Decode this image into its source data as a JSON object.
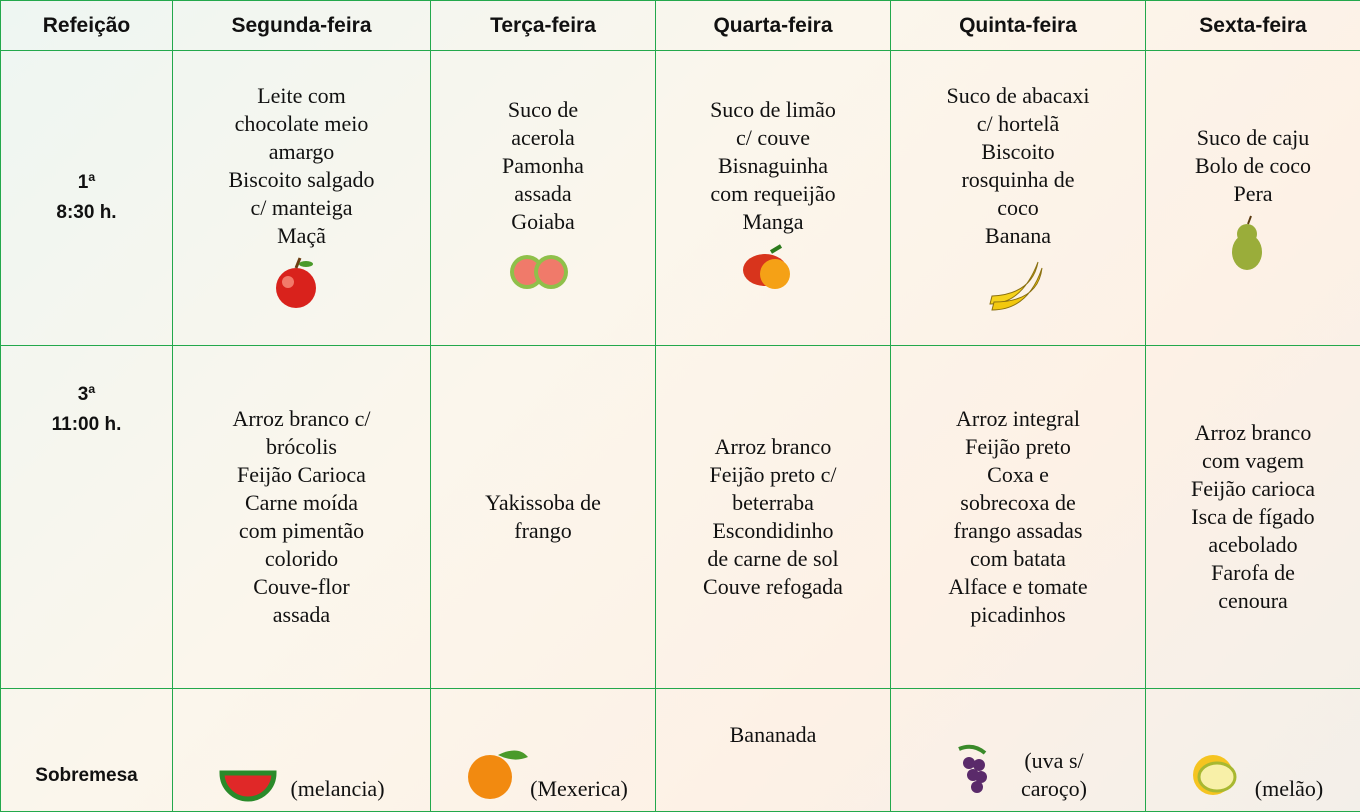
{
  "table": {
    "header": [
      "Refeição",
      "Segunda-feira",
      "Terça-feira",
      "Quarta-feira",
      "Quinta-feira",
      "Sexta-feira"
    ],
    "rows": [
      {
        "label": [
          "1ª",
          "8:30 h."
        ],
        "cells": [
          [
            "Leite com",
            "chocolate meio",
            "amargo",
            "Biscoito salgado",
            "c/ manteiga",
            "Maçã"
          ],
          [
            "Suco de",
            "acerola",
            "Pamonha",
            "assada",
            "Goiaba"
          ],
          [
            "Suco de limão",
            "c/ couve",
            "Bisnaguinha",
            "com requeijão",
            "Manga"
          ],
          [
            "Suco de abacaxi",
            "c/ hortelã",
            "Biscoito",
            "rosquinha de",
            "coco",
            "Banana"
          ],
          [
            "Suco de caju",
            "Bolo de coco",
            "Pera"
          ]
        ]
      },
      {
        "label": [
          "3ª",
          "11:00 h."
        ],
        "cells": [
          [
            "Arroz branco c/",
            "brócolis",
            "Feijão Carioca",
            "Carne moída",
            "com pimentão",
            "colorido",
            "Couve-flor",
            "assada"
          ],
          [
            "Yakissoba de",
            "frango"
          ],
          [
            "Arroz branco",
            "Feijão preto c/",
            "beterraba",
            "Escondidinho",
            "de carne de sol",
            "Couve refogada"
          ],
          [
            "Arroz integral",
            "Feijão preto",
            "Coxa e",
            "sobrecoxa de",
            "frango assadas",
            "com batata",
            "Alface e tomate",
            "picadinhos"
          ],
          [
            "Arroz branco",
            "com vagem",
            "Feijão carioca",
            "Isca de fígado",
            "acebolado",
            "Farofa de",
            "cenoura"
          ]
        ]
      },
      {
        "label": [
          "Sobremesa"
        ],
        "cells": [
          [
            "(melancia)"
          ],
          [
            "(Mexerica)"
          ],
          [
            "Bananada"
          ],
          [
            "(uva s/",
            "caroço)"
          ],
          [
            "(melão)"
          ]
        ]
      }
    ]
  }
}
